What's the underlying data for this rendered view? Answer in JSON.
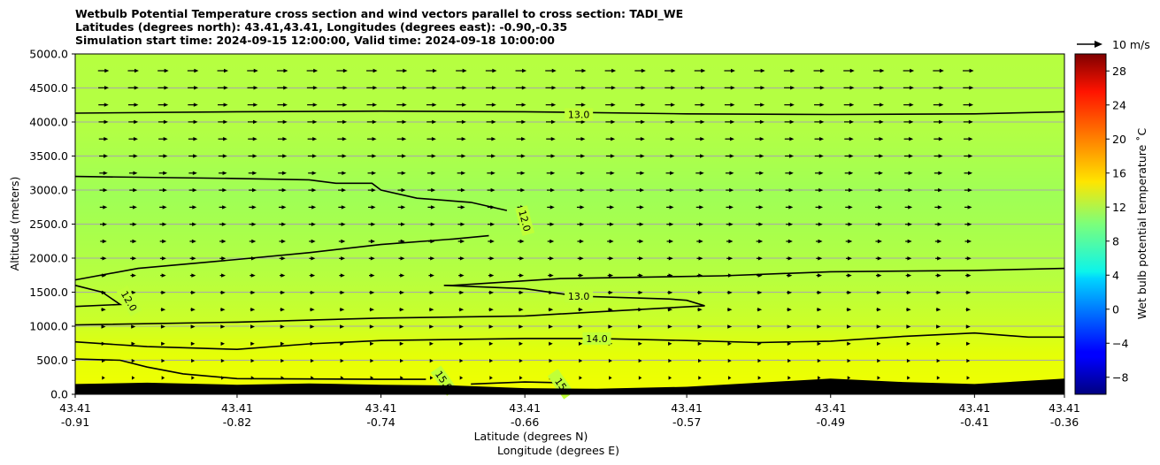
{
  "chart_data": {
    "type": "heatmap",
    "title_lines": [
      "Wetbulb Potential Temperature cross section and wind vectors parallel to cross section: TADI_WE",
      "Latitudes (degrees north): 43.41,43.41, Longitudes (degrees east): -0.90,-0.35",
      "Simulation start time: 2024-09-15 12:00:00, Valid time: 2024-09-18 10:00:00"
    ],
    "ylabel": "Altitude (meters)",
    "xlabel_1": "Latitude (degrees N)",
    "xlabel_2": "Longitude (degrees E)",
    "ylim": [
      0,
      5000
    ],
    "y_ticks": [
      "0.0",
      "500.0",
      "1000.0",
      "1500.0",
      "2000.0",
      "2500.0",
      "3000.0",
      "3500.0",
      "4000.0",
      "4500.0",
      "5000.0"
    ],
    "x_tick_values": [
      -0.91,
      -0.82,
      -0.74,
      -0.66,
      -0.57,
      -0.49,
      -0.41,
      -0.36
    ],
    "x_tick_lat": [
      "43.41",
      "43.41",
      "43.41",
      "43.41",
      "43.41",
      "43.41",
      "43.41",
      "43.41"
    ],
    "x_tick_lon": [
      "-0.91",
      "-0.82",
      "-0.74",
      "-0.66",
      "-0.57",
      "-0.49",
      "-0.41",
      "-0.36"
    ],
    "xlim": [
      -0.91,
      -0.36
    ],
    "grid": "horizontal",
    "colorbar": {
      "label": "Wet bulb potential temperature $^\\circ$C",
      "label_display": "Wet bulb potential temperature ˚C",
      "range": [
        -10,
        30
      ],
      "ticks": [
        "−8",
        "−4",
        "0",
        "4",
        "8",
        "12",
        "16",
        "20",
        "24",
        "28"
      ],
      "colormap": "jet"
    },
    "wind_key_label": "10 m/s",
    "contours": [
      {
        "level": 13.0,
        "label": "13.0",
        "points": [
          [
            -0.91,
            4130
          ],
          [
            -0.82,
            4150
          ],
          [
            -0.74,
            4160
          ],
          [
            -0.66,
            4150
          ],
          [
            -0.57,
            4120
          ],
          [
            -0.49,
            4110
          ],
          [
            -0.41,
            4120
          ],
          [
            -0.36,
            4150
          ]
        ]
      },
      {
        "level": 12.0,
        "label": "12.0",
        "points": [
          [
            -0.91,
            3200
          ],
          [
            -0.82,
            3170
          ],
          [
            -0.78,
            3150
          ],
          [
            -0.765,
            3100
          ],
          [
            -0.745,
            3100
          ],
          [
            -0.74,
            3000
          ],
          [
            -0.72,
            2880
          ],
          [
            -0.69,
            2820
          ],
          [
            -0.67,
            2700
          ]
        ]
      },
      {
        "level": 12.0,
        "label": "12.0",
        "points": [
          [
            -0.91,
            1680
          ],
          [
            -0.875,
            1850
          ],
          [
            -0.82,
            1980
          ],
          [
            -0.78,
            2080
          ],
          [
            -0.74,
            2200
          ],
          [
            -0.7,
            2280
          ],
          [
            -0.68,
            2330
          ]
        ]
      },
      {
        "level": 12.0,
        "label": "12.0",
        "points": [
          [
            -0.91,
            1600
          ],
          [
            -0.895,
            1500
          ],
          [
            -0.885,
            1320
          ],
          [
            -0.91,
            1290
          ]
        ]
      },
      {
        "level": 13.0,
        "label": "13.0",
        "points": [
          [
            -0.36,
            1850
          ],
          [
            -0.41,
            1820
          ],
          [
            -0.49,
            1800
          ],
          [
            -0.55,
            1740
          ],
          [
            -0.64,
            1700
          ],
          [
            -0.7,
            1600
          ],
          [
            -0.705,
            1600
          ],
          [
            -0.66,
            1550
          ],
          [
            -0.63,
            1440
          ],
          [
            -0.58,
            1400
          ],
          [
            -0.57,
            1380
          ],
          [
            -0.56,
            1300
          ],
          [
            -0.66,
            1150
          ],
          [
            -0.74,
            1120
          ],
          [
            -0.82,
            1060
          ],
          [
            -0.91,
            1020
          ]
        ]
      },
      {
        "level": 14.0,
        "label": "14.0",
        "points": [
          [
            -0.91,
            770
          ],
          [
            -0.87,
            700
          ],
          [
            -0.82,
            660
          ],
          [
            -0.78,
            740
          ],
          [
            -0.74,
            790
          ],
          [
            -0.66,
            820
          ],
          [
            -0.62,
            820
          ],
          [
            -0.57,
            790
          ],
          [
            -0.53,
            760
          ],
          [
            -0.49,
            780
          ],
          [
            -0.45,
            850
          ],
          [
            -0.41,
            900
          ],
          [
            -0.38,
            840
          ],
          [
            -0.36,
            840
          ]
        ]
      },
      {
        "level": 15.0,
        "label": "15.0",
        "points": [
          [
            -0.91,
            520
          ],
          [
            -0.885,
            500
          ],
          [
            -0.87,
            400
          ],
          [
            -0.85,
            300
          ],
          [
            -0.82,
            230
          ],
          [
            -0.74,
            220
          ],
          [
            -0.715,
            220
          ]
        ]
      },
      {
        "level": 15.0,
        "label": "15",
        "points": [
          [
            -0.69,
            150
          ],
          [
            -0.66,
            180
          ],
          [
            -0.64,
            170
          ]
        ]
      }
    ],
    "terrain": [
      [
        -0.91,
        150
      ],
      [
        -0.87,
        170
      ],
      [
        -0.82,
        140
      ],
      [
        -0.78,
        160
      ],
      [
        -0.74,
        140
      ],
      [
        -0.7,
        130
      ],
      [
        -0.66,
        90
      ],
      [
        -0.62,
        80
      ],
      [
        -0.57,
        110
      ],
      [
        -0.53,
        170
      ],
      [
        -0.49,
        230
      ],
      [
        -0.45,
        180
      ],
      [
        -0.41,
        150
      ],
      [
        -0.36,
        230
      ]
    ]
  }
}
